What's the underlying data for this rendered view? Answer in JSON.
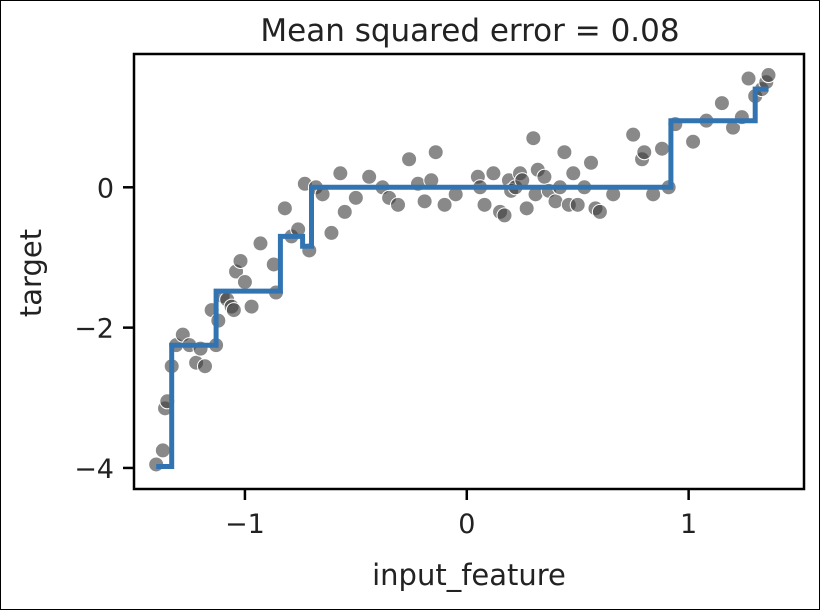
{
  "chart_data": {
    "type": "scatter",
    "title": "Mean squared error = 0.08",
    "xlabel": "input_feature",
    "ylabel": "target",
    "xlim": [
      -1.5,
      1.52
    ],
    "ylim": [
      -4.3,
      1.9
    ],
    "xticks": [
      -1,
      0,
      1
    ],
    "xtick_labels": [
      "−1",
      "0",
      "1"
    ],
    "yticks": [
      -4,
      -2,
      0
    ],
    "ytick_labels": [
      "−4",
      "−2",
      "0"
    ],
    "grid": false,
    "legend": "none",
    "colors": {
      "points": "#3a3a3a",
      "line": "#3274b2"
    },
    "scatter": {
      "x": [
        -1.4,
        -1.37,
        -1.36,
        -1.35,
        -1.33,
        -1.31,
        -1.28,
        -1.25,
        -1.22,
        -1.2,
        -1.18,
        -1.15,
        -1.13,
        -1.12,
        -1.1,
        -1.08,
        -1.06,
        -1.05,
        -1.04,
        -1.02,
        -1.0,
        -0.97,
        -0.93,
        -0.87,
        -0.86,
        -0.82,
        -0.79,
        -0.76,
        -0.73,
        -0.71,
        -0.68,
        -0.65,
        -0.61,
        -0.57,
        -0.55,
        -0.5,
        -0.44,
        -0.38,
        -0.35,
        -0.31,
        -0.26,
        -0.22,
        -0.19,
        -0.16,
        -0.14,
        -0.1,
        -0.05,
        0.05,
        0.06,
        0.08,
        0.12,
        0.15,
        0.17,
        0.19,
        0.2,
        0.22,
        0.24,
        0.25,
        0.27,
        0.3,
        0.31,
        0.32,
        0.35,
        0.37,
        0.4,
        0.42,
        0.44,
        0.46,
        0.48,
        0.5,
        0.53,
        0.56,
        0.58,
        0.6,
        0.66,
        0.75,
        0.79,
        0.8,
        0.84,
        0.88,
        0.91,
        0.94,
        1.02,
        1.08,
        1.15,
        1.2,
        1.24,
        1.27,
        1.3,
        1.33,
        1.35,
        1.36
      ],
      "y": [
        -3.95,
        -3.75,
        -3.15,
        -3.05,
        -2.55,
        -2.25,
        -2.1,
        -2.25,
        -2.5,
        -2.3,
        -2.55,
        -1.75,
        -2.25,
        -1.9,
        -1.55,
        -1.6,
        -1.7,
        -1.75,
        -1.2,
        -1.05,
        -1.35,
        -1.7,
        -0.8,
        -1.1,
        -1.5,
        -0.3,
        -0.7,
        -0.6,
        0.05,
        -0.9,
        0.0,
        -0.1,
        -0.65,
        0.2,
        -0.35,
        -0.15,
        0.15,
        0.0,
        -0.15,
        -0.25,
        0.4,
        0.05,
        -0.2,
        0.1,
        0.5,
        -0.25,
        -0.1,
        0.15,
        0.0,
        -0.25,
        0.2,
        -0.35,
        -0.4,
        0.1,
        -0.05,
        0.0,
        0.2,
        0.1,
        -0.3,
        0.7,
        -0.1,
        0.25,
        0.15,
        -0.05,
        -0.2,
        0.0,
        0.5,
        -0.25,
        0.2,
        -0.25,
        0.0,
        0.35,
        -0.3,
        -0.35,
        -0.1,
        0.75,
        0.4,
        0.5,
        -0.1,
        0.55,
        0.0,
        0.9,
        0.65,
        0.95,
        1.2,
        0.85,
        1.0,
        1.55,
        1.3,
        1.4,
        1.5,
        1.6
      ]
    },
    "series": [
      {
        "x": [
          -1.4,
          -1.33,
          -1.33,
          -1.13,
          -1.13,
          -0.84,
          -0.84,
          -0.74,
          -0.74,
          -0.7,
          -0.7,
          0.92,
          0.92,
          1.25,
          1.25,
          1.3,
          1.3,
          1.36
        ],
        "y": [
          -3.98,
          -3.98,
          -2.25,
          -2.25,
          -1.48,
          -1.48,
          -0.7,
          -0.7,
          -0.84,
          -0.84,
          0.0,
          0.0,
          0.95,
          0.95,
          0.95,
          0.95,
          1.4,
          1.4
        ]
      }
    ]
  }
}
